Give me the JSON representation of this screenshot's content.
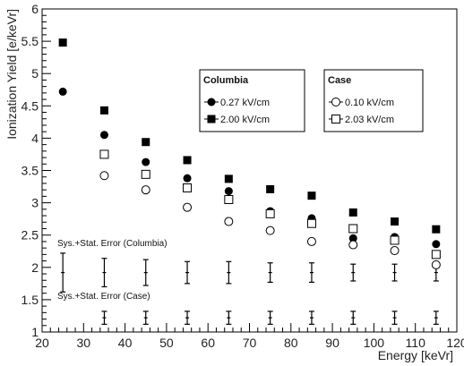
{
  "chart_data": {
    "type": "scatter",
    "title": "",
    "xlabel": "Energy [keVr]",
    "ylabel": "Ionization Yield [e/keVr]",
    "xlim": [
      20,
      120
    ],
    "ylim": [
      1,
      6
    ],
    "x_ticks": [
      "20",
      "30",
      "40",
      "50",
      "60",
      "70",
      "80",
      "90",
      "100",
      "110",
      "120"
    ],
    "y_ticks": [
      "1",
      "1.5",
      "2",
      "2.5",
      "3",
      "3.5",
      "4",
      "4.5",
      "5",
      "5.5",
      "6"
    ],
    "grid": false,
    "series": [
      {
        "name": "0.27 kV/cm",
        "group": "Columbia",
        "marker": "filled-circle",
        "points": [
          [
            25,
            4.72
          ],
          [
            35,
            4.05
          ],
          [
            45,
            3.63
          ],
          [
            55,
            3.38
          ],
          [
            65,
            3.18
          ],
          [
            75,
            2.87
          ],
          [
            85,
            2.76
          ],
          [
            95,
            2.45
          ],
          [
            105,
            2.47
          ],
          [
            115,
            2.36
          ]
        ]
      },
      {
        "name": "2.00 kV/cm",
        "group": "Columbia",
        "marker": "filled-square",
        "points": [
          [
            25,
            5.48
          ],
          [
            35,
            4.43
          ],
          [
            45,
            3.94
          ],
          [
            55,
            3.66
          ],
          [
            65,
            3.37
          ],
          [
            75,
            3.21
          ],
          [
            85,
            3.11
          ],
          [
            95,
            2.85
          ],
          [
            105,
            2.71
          ],
          [
            115,
            2.59
          ]
        ]
      },
      {
        "name": "0.10 kV/cm",
        "group": "Case",
        "marker": "open-circle",
        "points": [
          [
            35,
            3.42
          ],
          [
            45,
            3.2
          ],
          [
            55,
            2.93
          ],
          [
            65,
            2.71
          ],
          [
            75,
            2.57
          ],
          [
            85,
            2.4
          ],
          [
            95,
            2.35
          ],
          [
            105,
            2.26
          ],
          [
            115,
            2.04
          ]
        ]
      },
      {
        "name": "2.03 kV/cm",
        "group": "Case",
        "marker": "open-square",
        "points": [
          [
            35,
            3.75
          ],
          [
            45,
            3.44
          ],
          [
            55,
            3.23
          ],
          [
            65,
            3.05
          ],
          [
            75,
            2.83
          ],
          [
            85,
            2.68
          ],
          [
            95,
            2.6
          ],
          [
            105,
            2.42
          ],
          [
            115,
            2.2
          ]
        ]
      }
    ],
    "legends": [
      {
        "title": "Columbia",
        "entries": [
          "0.27 kV/cm",
          "2.00 kV/cm"
        ],
        "placement": "top-center"
      },
      {
        "title": "Case",
        "entries": [
          "0.10 kV/cm",
          "2.03 kV/cm"
        ],
        "placement": "top-right"
      }
    ],
    "error_bars": [
      {
        "label": "Sys.+Stat. Error (Columbia)",
        "center": 1.92,
        "half_widths": [
          0.3,
          0.22,
          0.2,
          0.17,
          0.17,
          0.15,
          0.15,
          0.13,
          0.13,
          0.13
        ],
        "x": [
          25,
          35,
          45,
          55,
          65,
          75,
          85,
          95,
          105,
          115
        ]
      },
      {
        "label": "Sys.+Stat. Error (Case)",
        "center": 1.22,
        "half_widths": [
          0.1,
          0.1,
          0.1,
          0.1,
          0.1,
          0.1,
          0.1,
          0.1,
          0.1
        ],
        "x": [
          35,
          45,
          55,
          65,
          75,
          85,
          95,
          105,
          115
        ]
      }
    ]
  }
}
